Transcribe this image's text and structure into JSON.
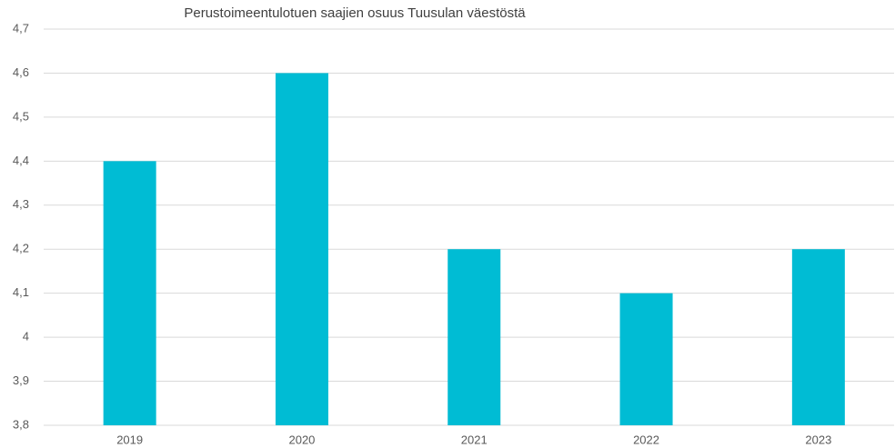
{
  "chart_data": {
    "type": "bar",
    "title": "Perustoimeentulotuen saajien osuus Tuusulan väestöstä",
    "categories": [
      "2019",
      "2020",
      "2021",
      "2022",
      "2023"
    ],
    "values": [
      4.4,
      4.6,
      4.2,
      4.1,
      4.2
    ],
    "color": "#00bcd4",
    "ylim": [
      3.8,
      4.7
    ],
    "yticks": [
      {
        "value": 3.8,
        "label": "3,8"
      },
      {
        "value": 3.9,
        "label": "3,9"
      },
      4,
      {
        "value": 4.1,
        "label": "4,1"
      },
      {
        "value": 4.2,
        "label": "4,2"
      },
      {
        "value": 4.3,
        "label": "4,3"
      },
      {
        "value": 4.4,
        "label": "4,4"
      },
      {
        "value": 4.5,
        "label": "4,5"
      },
      {
        "value": 4.6,
        "label": "4,6"
      },
      {
        "value": 4.7,
        "label": "4,7"
      }
    ],
    "grid": true
  }
}
